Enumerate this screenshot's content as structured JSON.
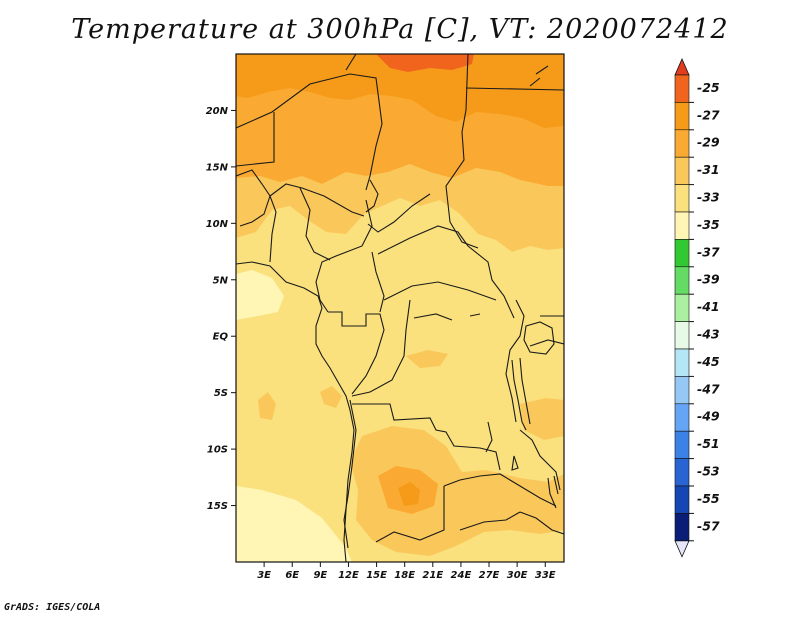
{
  "title": "Temperature at 300hPa [C], VT: 2020072412",
  "credit": "GrADS: IGES/COLA",
  "map": {
    "lat_range": [
      -20,
      25
    ],
    "lon_range": [
      0,
      35
    ],
    "y_ticks": [
      {
        "lat": 20,
        "label": "20N"
      },
      {
        "lat": 15,
        "label": "15N"
      },
      {
        "lat": 10,
        "label": "10N"
      },
      {
        "lat": 5,
        "label": "5N"
      },
      {
        "lat": 0,
        "label": "EQ"
      },
      {
        "lat": -5,
        "label": "5S"
      },
      {
        "lat": -10,
        "label": "10S"
      },
      {
        "lat": -15,
        "label": "15S"
      }
    ],
    "x_ticks": [
      {
        "lon": 3,
        "label": "3E"
      },
      {
        "lon": 6,
        "label": "6E"
      },
      {
        "lon": 9,
        "label": "9E"
      },
      {
        "lon": 12,
        "label": "12E"
      },
      {
        "lon": 15,
        "label": "15E"
      },
      {
        "lon": 18,
        "label": "18E"
      },
      {
        "lon": 21,
        "label": "21E"
      },
      {
        "lon": 24,
        "label": "24E"
      },
      {
        "lon": 27,
        "label": "27E"
      },
      {
        "lon": 30,
        "label": "30E"
      },
      {
        "lon": 33,
        "label": "33E"
      }
    ]
  },
  "colorbar": {
    "levels": [
      {
        "label": "-25",
        "color": "#f0641e"
      },
      {
        "label": "-27",
        "color": "#f59b19"
      },
      {
        "label": "-29",
        "color": "#faaa32"
      },
      {
        "label": "-31",
        "color": "#fac85a"
      },
      {
        "label": "-33",
        "color": "#fae17d"
      },
      {
        "label": "-35",
        "color": "#fff5b4"
      },
      {
        "label": "-37",
        "color": "#32c832"
      },
      {
        "label": "-39",
        "color": "#64dc64"
      },
      {
        "label": "-41",
        "color": "#aaf0a0"
      },
      {
        "label": "-43",
        "color": "#e6fae6"
      },
      {
        "label": "-45",
        "color": "#b4e6f5"
      },
      {
        "label": "-47",
        "color": "#96c8f5"
      },
      {
        "label": "-49",
        "color": "#64a5f5"
      },
      {
        "label": "-51",
        "color": "#3c82e6"
      },
      {
        "label": "-53",
        "color": "#2864d2"
      },
      {
        "label": "-55",
        "color": "#1446b4"
      },
      {
        "label": "-57",
        "color": "#0a1e78"
      }
    ],
    "top_tip_color": "#e13c1e",
    "bottom_tip_color": "#e6e6fa"
  }
}
